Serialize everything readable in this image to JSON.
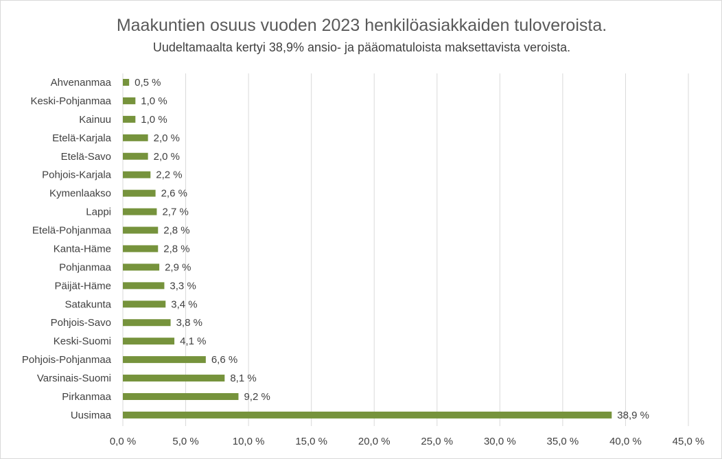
{
  "chart_data": {
    "type": "bar",
    "orientation": "horizontal",
    "title": "Maakuntien osuus vuoden 2023 henkilöasiakkaiden tuloveroista.",
    "subtitle": "Uudeltamaalta kertyi 38,9% ansio- ja pääomatuloista maksettavista veroista.",
    "categories": [
      "Ahvenanmaa",
      "Keski-Pohjanmaa",
      "Kainuu",
      "Etelä-Karjala",
      "Etelä-Savo",
      "Pohjois-Karjala",
      "Kymenlaakso",
      "Lappi",
      "Etelä-Pohjanmaa",
      "Kanta-Häme",
      "Pohjanmaa",
      "Päijät-Häme",
      "Satakunta",
      "Pohjois-Savo",
      "Keski-Suomi",
      "Pohjois-Pohjanmaa",
      "Varsinais-Suomi",
      "Pirkanmaa",
      "Uusimaa"
    ],
    "values": [
      0.5,
      1.0,
      1.0,
      2.0,
      2.0,
      2.2,
      2.6,
      2.7,
      2.8,
      2.8,
      2.9,
      3.3,
      3.4,
      3.8,
      4.1,
      6.6,
      8.1,
      9.2,
      38.9
    ],
    "data_labels": [
      "0,5 %",
      "1,0 %",
      "1,0 %",
      "2,0 %",
      "2,0 %",
      "2,2 %",
      "2,6 %",
      "2,7 %",
      "2,8 %",
      "2,8 %",
      "2,9 %",
      "3,3 %",
      "3,4 %",
      "3,8 %",
      "4,1 %",
      "6,6 %",
      "8,1 %",
      "9,2 %",
      "38,9 %"
    ],
    "x_ticks": [
      "0,0 %",
      "5,0 %",
      "10,0 %",
      "15,0 %",
      "20,0 %",
      "25,0 %",
      "30,0 %",
      "35,0 %",
      "40,0 %",
      "45,0 %"
    ],
    "xlim": [
      0,
      45
    ],
    "grid": "vertical",
    "bar_color": "#76933c",
    "grid_color": "#d9d9d9"
  }
}
